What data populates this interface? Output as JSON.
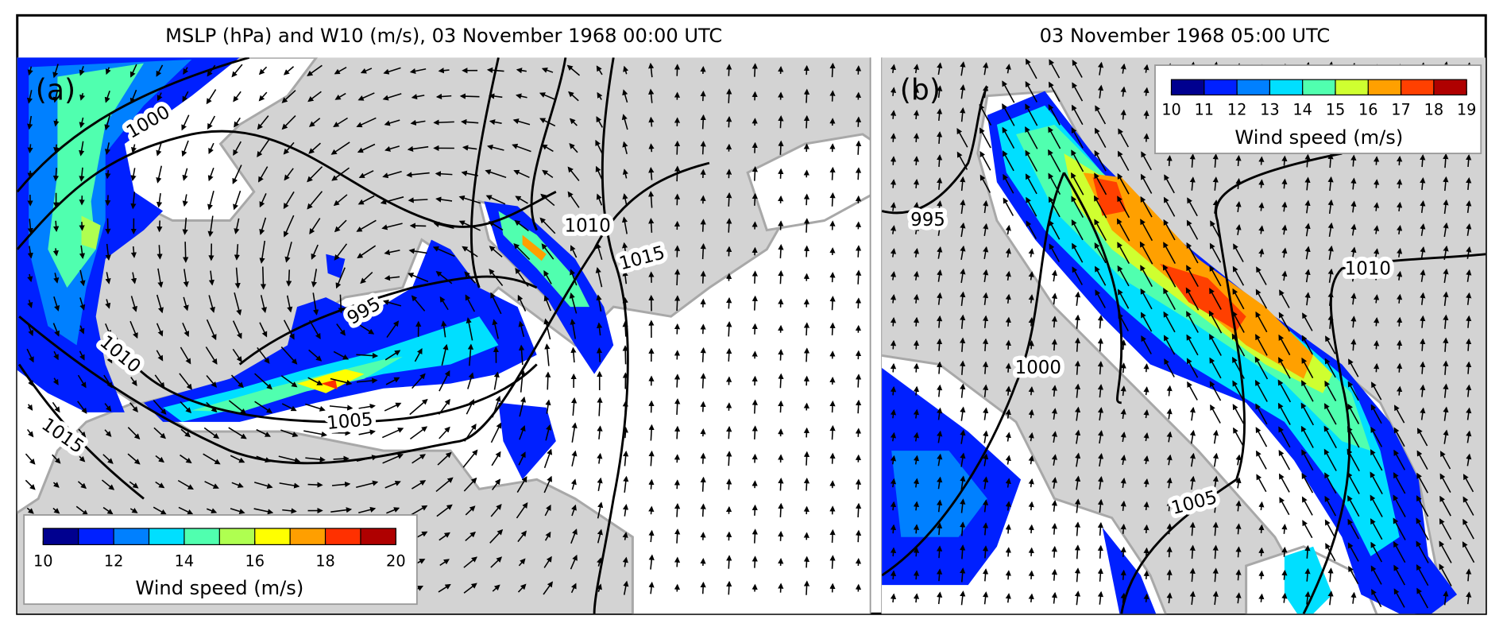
{
  "panels": [
    {
      "title": "MSLP (hPa) and W10 (m/s), 03 November 1968 00:00 UTC",
      "label": "(a)",
      "isobar_labels": [
        1000,
        995,
        1010,
        1015,
        1010,
        1005,
        1015
      ],
      "colorbar": {
        "ticks": [
          10,
          12,
          14,
          16,
          18,
          20
        ],
        "colors": [
          "#00008f",
          "#0020ff",
          "#0080ff",
          "#00dfff",
          "#50ffaf",
          "#afff50",
          "#ffff00",
          "#ff9f00",
          "#ff3000",
          "#af0000"
        ],
        "label": "Wind speed (m/s)"
      }
    },
    {
      "title": "03 November 1968 05:00 UTC",
      "label": "(b)",
      "isobar_labels": [
        995,
        1010,
        1000,
        1005
      ],
      "colorbar": {
        "ticks": [
          10,
          11,
          12,
          13,
          14,
          15,
          16,
          17,
          18,
          19
        ],
        "colors": [
          "#00008f",
          "#0020ff",
          "#0080ff",
          "#00dfff",
          "#50ffaf",
          "#cfff30",
          "#ffa000",
          "#ff4000",
          "#af0000"
        ],
        "label": "Wind speed (m/s)"
      }
    }
  ]
}
